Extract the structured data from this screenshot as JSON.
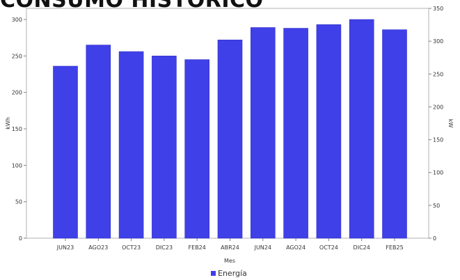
{
  "header": {
    "title": "CONSUMO HISTÓRICO"
  },
  "chart_data": {
    "type": "bar",
    "title": "",
    "xlabel": "Mes",
    "ylabel": "kWh",
    "y2label": "kW",
    "categories": [
      "JUN23",
      "AGO23",
      "OCT23",
      "DIC23",
      "FEB24",
      "ABR24",
      "JUN24",
      "AGO24",
      "OCT24",
      "DIC24",
      "FEB25"
    ],
    "series": [
      {
        "name": "Energía",
        "color": "#4040e8",
        "values": [
          236,
          265,
          256,
          250,
          245,
          272,
          289,
          288,
          293,
          300,
          286
        ]
      }
    ],
    "ylim": [
      0,
      300
    ],
    "yticks": [
      0,
      50,
      100,
      150,
      200,
      250,
      300
    ],
    "y2lim": [
      0,
      350
    ],
    "y2ticks": [
      0,
      50,
      100,
      150,
      200,
      250,
      300,
      350
    ],
    "legend_position": "bottom",
    "grid": false
  }
}
